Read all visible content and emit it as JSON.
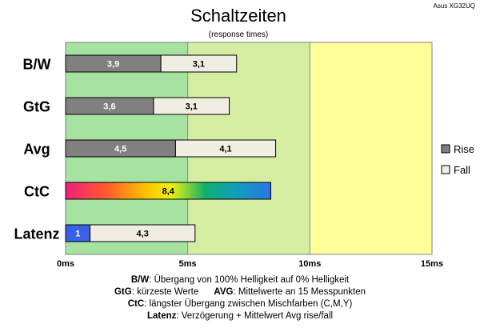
{
  "watermark": "Asus XG32UQ",
  "chart_data": {
    "type": "bar",
    "orientation": "horizontal",
    "stacked": true,
    "title": "Schaltzeiten",
    "subtitle": "(response times)",
    "categories": [
      "B/W",
      "GtG",
      "Avg",
      "CtC",
      "Latenz"
    ],
    "series": [
      {
        "name": "Rise",
        "values": [
          3.9,
          3.6,
          4.5,
          null,
          1
        ],
        "color": "#808080"
      },
      {
        "name": "Fall",
        "values": [
          3.1,
          3.1,
          4.1,
          null,
          4.3
        ],
        "color": "#f0ede2"
      }
    ],
    "ctc": {
      "value": 8.4,
      "label": "8,4"
    },
    "latenz_first_color": "#3a60e8",
    "value_labels": {
      "rise": [
        "3,9",
        "3,6",
        "4,5",
        "",
        "1"
      ],
      "fall": [
        "3,1",
        "3,1",
        "4,1",
        "",
        "4,3"
      ]
    },
    "xlim": [
      0,
      15
    ],
    "xticks": [
      0,
      5,
      10,
      15
    ],
    "xtick_labels": [
      "0ms",
      "5ms",
      "10ms",
      "15ms"
    ],
    "background_zones": [
      {
        "from": 0,
        "to": 5,
        "color": "#a6e3a0"
      },
      {
        "from": 5,
        "to": 10,
        "color": "#d4eda0"
      },
      {
        "from": 10,
        "to": 15,
        "color": "#ffff9a"
      }
    ],
    "legend": {
      "placement": "right",
      "entries": [
        "Rise",
        "Fall"
      ]
    },
    "grid": true
  },
  "caption": {
    "l1_key": "B/W",
    "l1_text": ":  Übergang von 100% Helligkeit auf 0% Helligkeit",
    "l2_key_a": "GtG",
    "l2_text_a": ": kürzeste  Werte",
    "l2_key_b": "AVG",
    "l2_text_b": ": Mittelwerte  an 15 Messpunkten",
    "l3_key": "CtC",
    "l3_text": ": längster Übergang  zwischen Mischfarben (C,M,Y)",
    "l4_key": "Latenz",
    "l4_text": ": Verzögerung  + Mittelwert  Avg rise/fall"
  }
}
